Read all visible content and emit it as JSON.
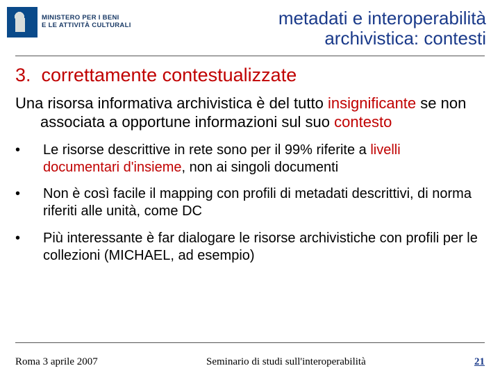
{
  "colors": {
    "title_blue": "#1a3a8a",
    "accent_red": "#c00000",
    "rule": "#555555",
    "logo_bg": "#0a4a8a",
    "body_text": "#000000",
    "background": "#ffffff"
  },
  "typography": {
    "body_family": "Arial",
    "footer_family": "Times New Roman",
    "title_size_pt": 20,
    "heading_size_pt": 20,
    "intro_size_pt": 16,
    "bullet_size_pt": 15,
    "footer_size_pt": 11
  },
  "logo": {
    "line1": "MINISTERO PER I BENI",
    "line2": "E LE ATTIVITÀ CULTURALI"
  },
  "title": {
    "line1": "metadati e interoperabilità",
    "line2": "archivistica: contesti"
  },
  "heading": {
    "number": "3.",
    "text": "correttamente contestualizzate"
  },
  "intro": {
    "pre": "Una risorsa informativa archivistica è del tutto ",
    "kw1": "insignificante",
    "mid": " se non associata a opportune informazioni sul suo ",
    "kw2": "contesto"
  },
  "bullets": [
    {
      "pre": "Le risorse descrittive in rete sono per il 99% riferite a ",
      "kw": "livelli documentari d'insieme",
      "post": ", non ai singoli documenti"
    },
    {
      "pre": "Non è così facile il mapping con profili di metadati descrittivi, di norma riferiti alle unità, come DC",
      "kw": "",
      "post": ""
    },
    {
      "pre": "Più interessante è far dialogare le risorse archivistiche con profili per le collezioni (MICHAEL, ad esempio)",
      "kw": "",
      "post": ""
    }
  ],
  "footer": {
    "date": "Roma 3 aprile 2007",
    "center": "Seminario di studi sull'interoperabilità",
    "page": "21"
  }
}
